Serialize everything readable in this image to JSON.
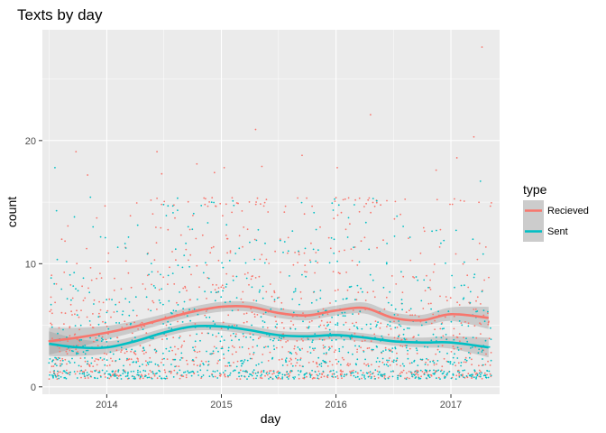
{
  "chart_data": {
    "type": "scatter",
    "title": "Texts by day",
    "xlabel": "day",
    "ylabel": "count",
    "x_ticks": [
      "2014",
      "2015",
      "2016",
      "2017"
    ],
    "y_ticks": [
      0,
      10,
      20
    ],
    "xlim": [
      "2013-06-10",
      "2017-06-05"
    ],
    "ylim": [
      -0.6,
      29
    ],
    "grid": true,
    "legend": {
      "title": "type",
      "placement": "right",
      "entries": [
        "Recieved",
        "Sent"
      ]
    },
    "colors": {
      "Recieved": "#F8766D",
      "Sent": "#00BFC4",
      "ribbon": "#999999",
      "panel": "#EBEBEB",
      "grid": "#FFFFFF"
    },
    "series": [
      {
        "name": "Recieved",
        "smooth": [
          [
            "2013-07-01",
            3.7
          ],
          [
            "2013-10-01",
            4.0
          ],
          [
            "2014-01-01",
            4.4
          ],
          [
            "2014-04-01",
            4.9
          ],
          [
            "2014-07-01",
            5.5
          ],
          [
            "2014-10-01",
            6.1
          ],
          [
            "2015-01-01",
            6.5
          ],
          [
            "2015-04-01",
            6.5
          ],
          [
            "2015-07-01",
            6.0
          ],
          [
            "2015-10-01",
            5.8
          ],
          [
            "2016-01-01",
            6.2
          ],
          [
            "2016-04-01",
            6.4
          ],
          [
            "2016-07-01",
            5.6
          ],
          [
            "2016-10-01",
            5.4
          ],
          [
            "2017-01-01",
            5.9
          ],
          [
            "2017-05-01",
            5.6
          ]
        ],
        "ribbon_halfwidth": [
          1.1,
          0.8,
          0.55,
          0.45,
          0.4,
          0.4,
          0.4,
          0.4,
          0.4,
          0.4,
          0.4,
          0.45,
          0.45,
          0.45,
          0.55,
          0.9
        ],
        "notable_points": [
          [
            "2013-09-25",
            19.1
          ],
          [
            "2013-11-01",
            17.2
          ],
          [
            "2014-06-10",
            19.1
          ],
          [
            "2014-06-25",
            17.3
          ],
          [
            "2014-10-15",
            18.1
          ],
          [
            "2014-12-10",
            17.4
          ],
          [
            "2015-01-10",
            17.8
          ],
          [
            "2015-04-20",
            20.9
          ],
          [
            "2015-05-10",
            17.9
          ],
          [
            "2015-09-15",
            18.8
          ],
          [
            "2016-01-05",
            17.8
          ],
          [
            "2016-04-20",
            22.1
          ],
          [
            "2016-11-15",
            17.6
          ],
          [
            "2017-01-20",
            18.6
          ],
          [
            "2017-03-15",
            20.3
          ],
          [
            "2017-04-10",
            27.6
          ]
        ]
      },
      {
        "name": "Sent",
        "smooth": [
          [
            "2013-07-01",
            3.5
          ],
          [
            "2013-10-01",
            3.2
          ],
          [
            "2014-01-01",
            3.2
          ],
          [
            "2014-04-01",
            3.7
          ],
          [
            "2014-07-01",
            4.4
          ],
          [
            "2014-10-01",
            4.9
          ],
          [
            "2015-01-01",
            4.9
          ],
          [
            "2015-04-01",
            4.6
          ],
          [
            "2015-07-01",
            4.2
          ],
          [
            "2015-10-01",
            4.1
          ],
          [
            "2016-01-01",
            4.2
          ],
          [
            "2016-04-01",
            4.0
          ],
          [
            "2016-07-01",
            3.7
          ],
          [
            "2016-10-01",
            3.6
          ],
          [
            "2017-01-01",
            3.6
          ],
          [
            "2017-05-01",
            3.2
          ]
        ],
        "ribbon_halfwidth": [
          1.0,
          0.7,
          0.5,
          0.4,
          0.35,
          0.35,
          0.35,
          0.35,
          0.35,
          0.35,
          0.35,
          0.35,
          0.35,
          0.4,
          0.5,
          0.8
        ],
        "notable_points": [
          [
            "2013-07-20",
            17.8
          ],
          [
            "2013-07-25",
            14.3
          ],
          [
            "2013-09-20",
            13.8
          ],
          [
            "2013-11-10",
            15.4
          ],
          [
            "2014-07-01",
            14.8
          ],
          [
            "2016-05-10",
            15.1
          ],
          [
            "2017-04-05",
            16.7
          ]
        ]
      }
    ]
  }
}
